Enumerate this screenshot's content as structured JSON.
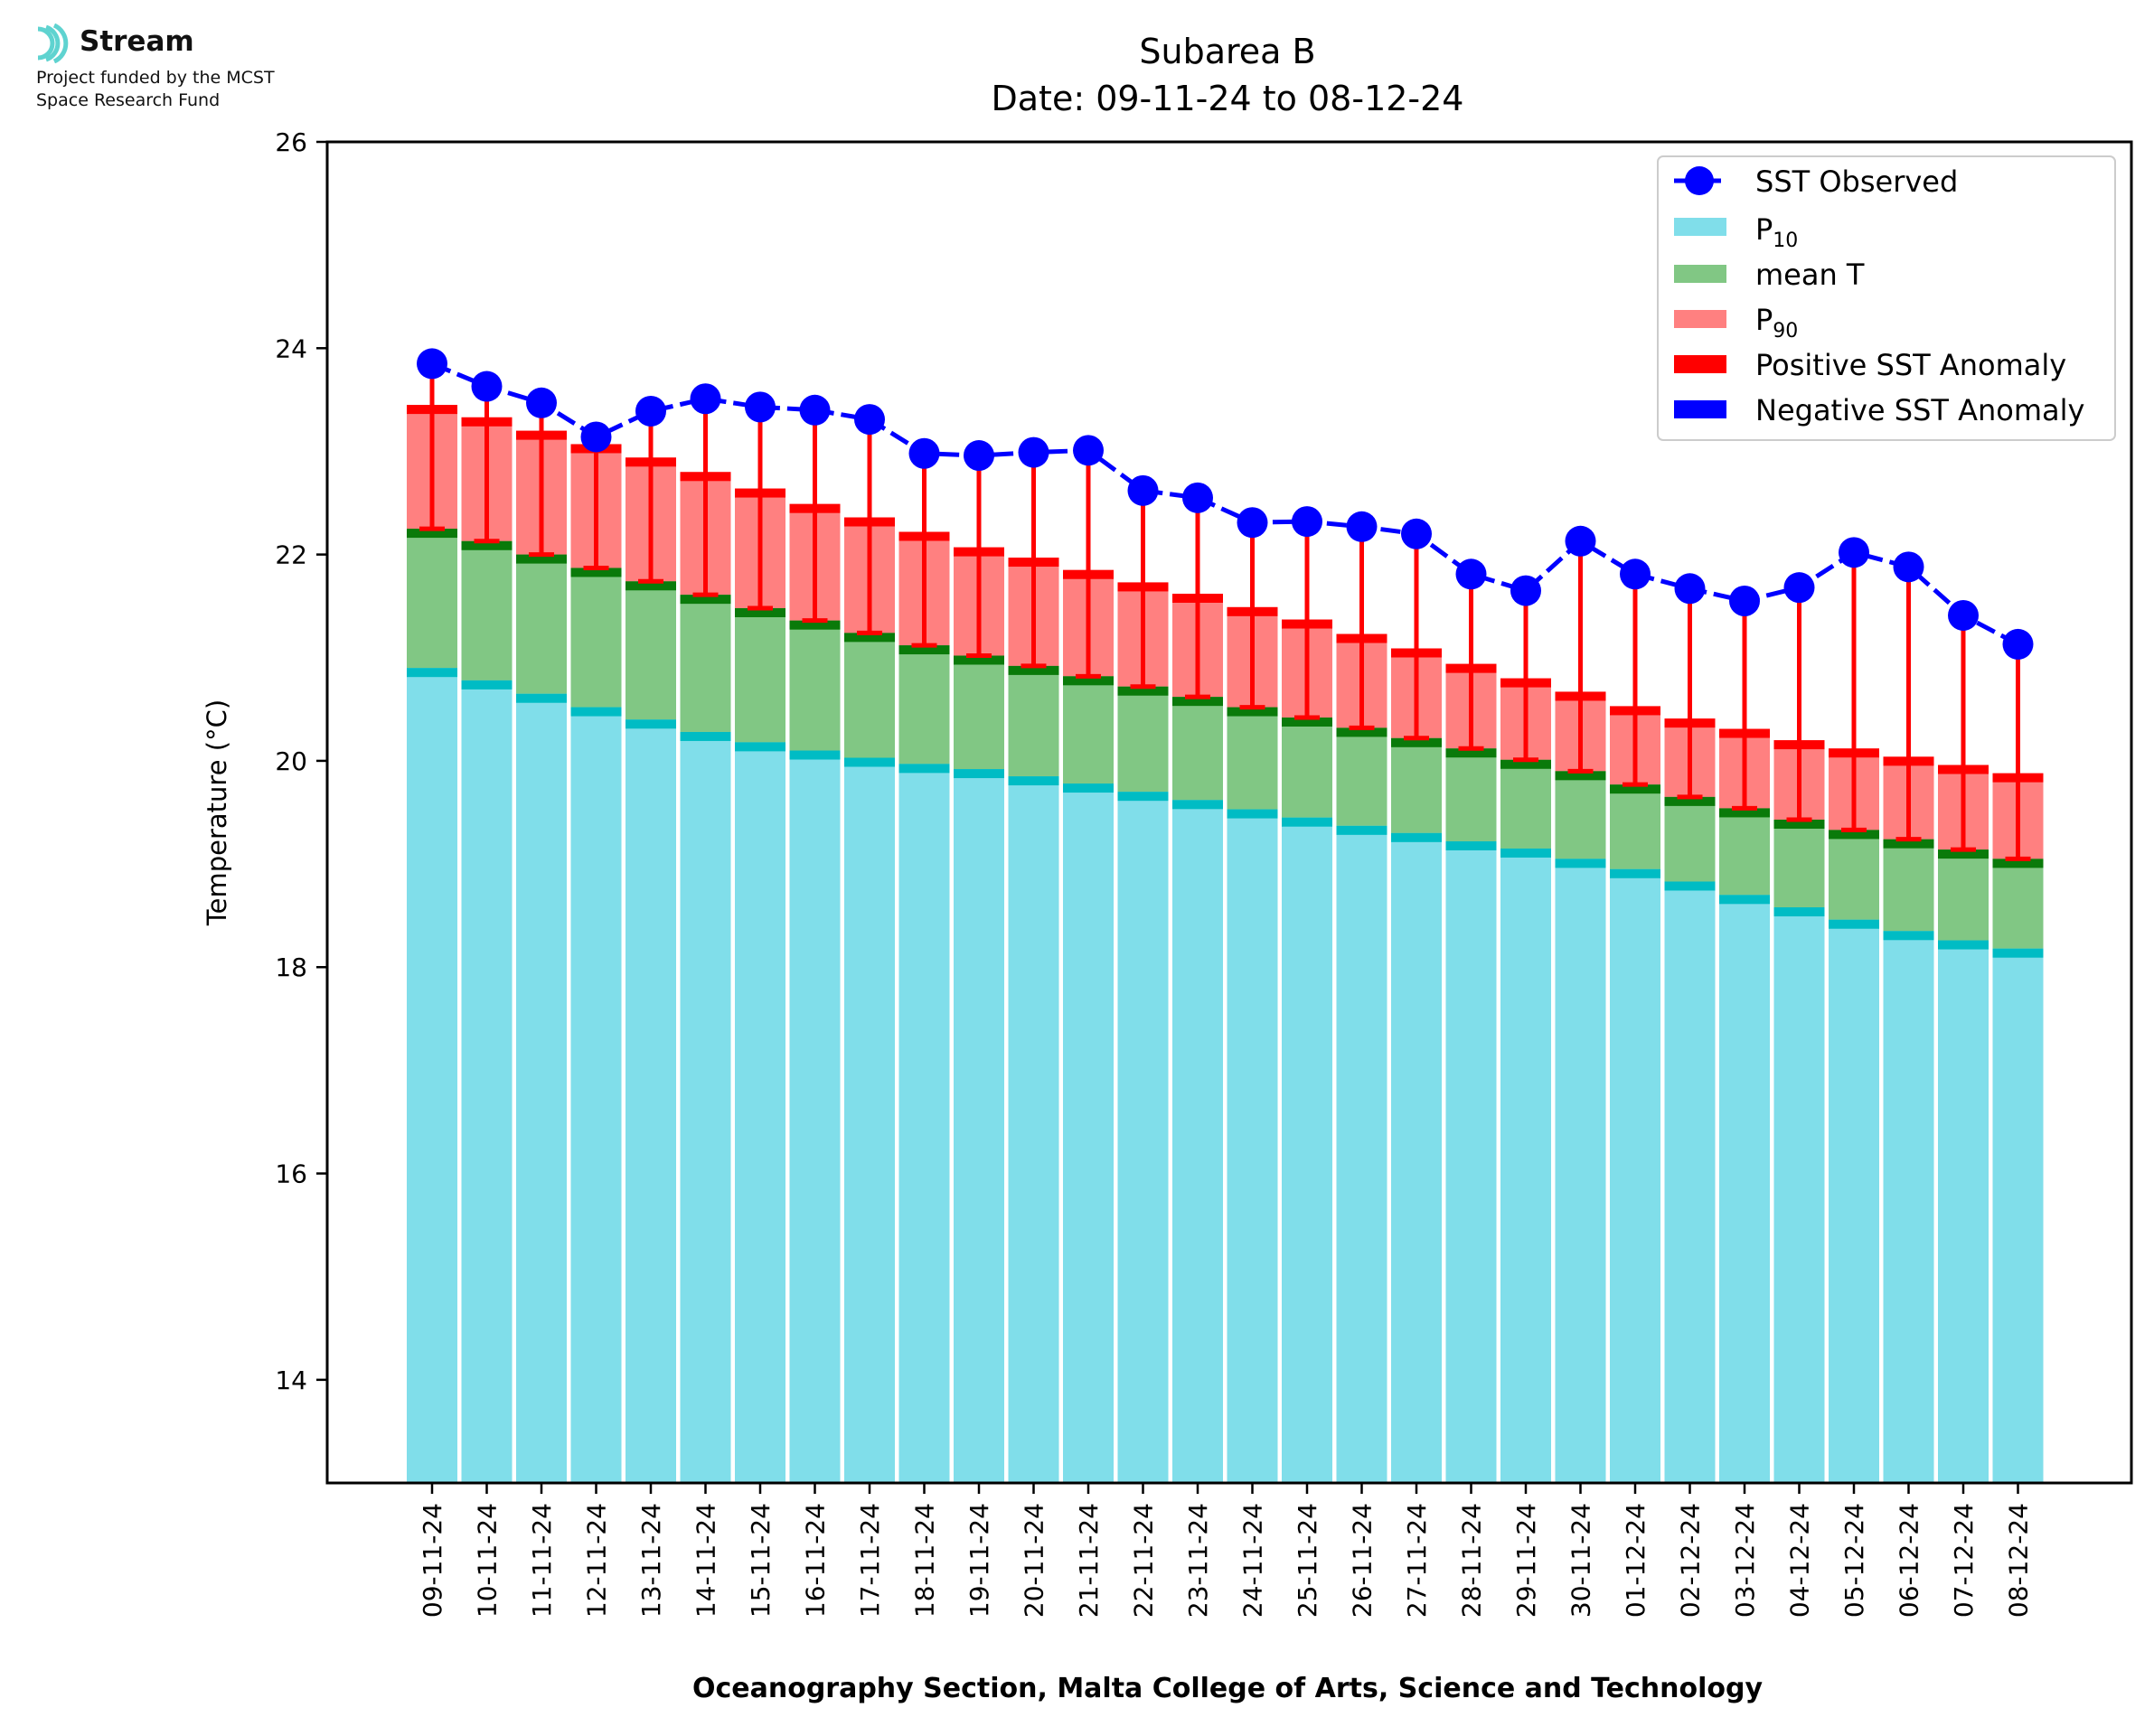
{
  "logo": {
    "brand_name": "Stream",
    "funding_line1": "Project funded by the MCST",
    "funding_line2": "Space Research Fund",
    "icon": "stream-logo-icon",
    "accent": "#5fd3d0"
  },
  "chart_data": {
    "type": "bar",
    "title": "Subarea B",
    "subtitle": "Date: 09-11-24 to 08-12-24",
    "xlabel": "Oceanography Section, Malta College of Arts, Science and Technology",
    "ylabel": "Temperature (°C)",
    "ylim": [
      13,
      26
    ],
    "yticks": [
      14,
      16,
      18,
      20,
      22,
      24,
      26
    ],
    "grid": false,
    "legend_position": "top-right",
    "categories": [
      "09-11-24",
      "10-11-24",
      "11-11-24",
      "12-11-24",
      "13-11-24",
      "14-11-24",
      "15-11-24",
      "16-11-24",
      "17-11-24",
      "18-11-24",
      "19-11-24",
      "20-11-24",
      "21-11-24",
      "22-11-24",
      "23-11-24",
      "24-11-24",
      "25-11-24",
      "26-11-24",
      "27-11-24",
      "28-11-24",
      "29-11-24",
      "30-11-24",
      "01-12-24",
      "02-12-24",
      "03-12-24",
      "04-12-24",
      "05-12-24",
      "06-12-24",
      "07-12-24",
      "08-12-24"
    ],
    "series": [
      {
        "name": "P10",
        "color": "#80deea",
        "line_color": "#00bcc4",
        "values": [
          20.9,
          20.78,
          20.65,
          20.52,
          20.4,
          20.28,
          20.18,
          20.1,
          20.03,
          19.97,
          19.92,
          19.85,
          19.78,
          19.7,
          19.62,
          19.53,
          19.45,
          19.37,
          19.3,
          19.22,
          19.15,
          19.05,
          18.95,
          18.83,
          18.7,
          18.58,
          18.46,
          18.35,
          18.26,
          18.18
        ]
      },
      {
        "name": "mean T",
        "color": "#81c784",
        "line_color": "#0a7a0a",
        "values": [
          22.25,
          22.13,
          22.0,
          21.87,
          21.74,
          21.61,
          21.48,
          21.36,
          21.24,
          21.12,
          21.02,
          20.92,
          20.82,
          20.72,
          20.62,
          20.52,
          20.42,
          20.32,
          20.22,
          20.12,
          20.01,
          19.9,
          19.77,
          19.65,
          19.54,
          19.43,
          19.33,
          19.24,
          19.14,
          19.05
        ]
      },
      {
        "name": "P90",
        "color": "#ff8080",
        "line_color": "#ff0000",
        "values": [
          23.45,
          23.33,
          23.2,
          23.07,
          22.94,
          22.8,
          22.64,
          22.49,
          22.36,
          22.22,
          22.07,
          21.97,
          21.85,
          21.73,
          21.62,
          21.49,
          21.37,
          21.23,
          21.09,
          20.94,
          20.8,
          20.67,
          20.53,
          20.41,
          20.31,
          20.2,
          20.12,
          20.04,
          19.96,
          19.88
        ]
      },
      {
        "name": "SST Observed",
        "color": "#0000ff",
        "values": [
          23.85,
          23.63,
          23.47,
          23.14,
          23.39,
          23.51,
          23.43,
          23.4,
          23.31,
          22.98,
          22.96,
          22.99,
          23.01,
          22.62,
          22.55,
          22.31,
          22.32,
          22.27,
          22.2,
          21.81,
          21.65,
          22.13,
          21.81,
          21.67,
          21.55,
          21.68,
          22.02,
          21.88,
          21.41,
          21.13
        ]
      }
    ],
    "legend_labels": {
      "sst": "SST Observed",
      "p10_base": "P",
      "p10_sub": "10",
      "mean": "mean T",
      "p90_base": "P",
      "p90_sub": "90",
      "pos": "Positive SST Anomaly",
      "neg": "Negative SST Anomaly"
    },
    "anomaly_colors": {
      "positive": "#ff0000",
      "negative": "#0000ff"
    }
  }
}
